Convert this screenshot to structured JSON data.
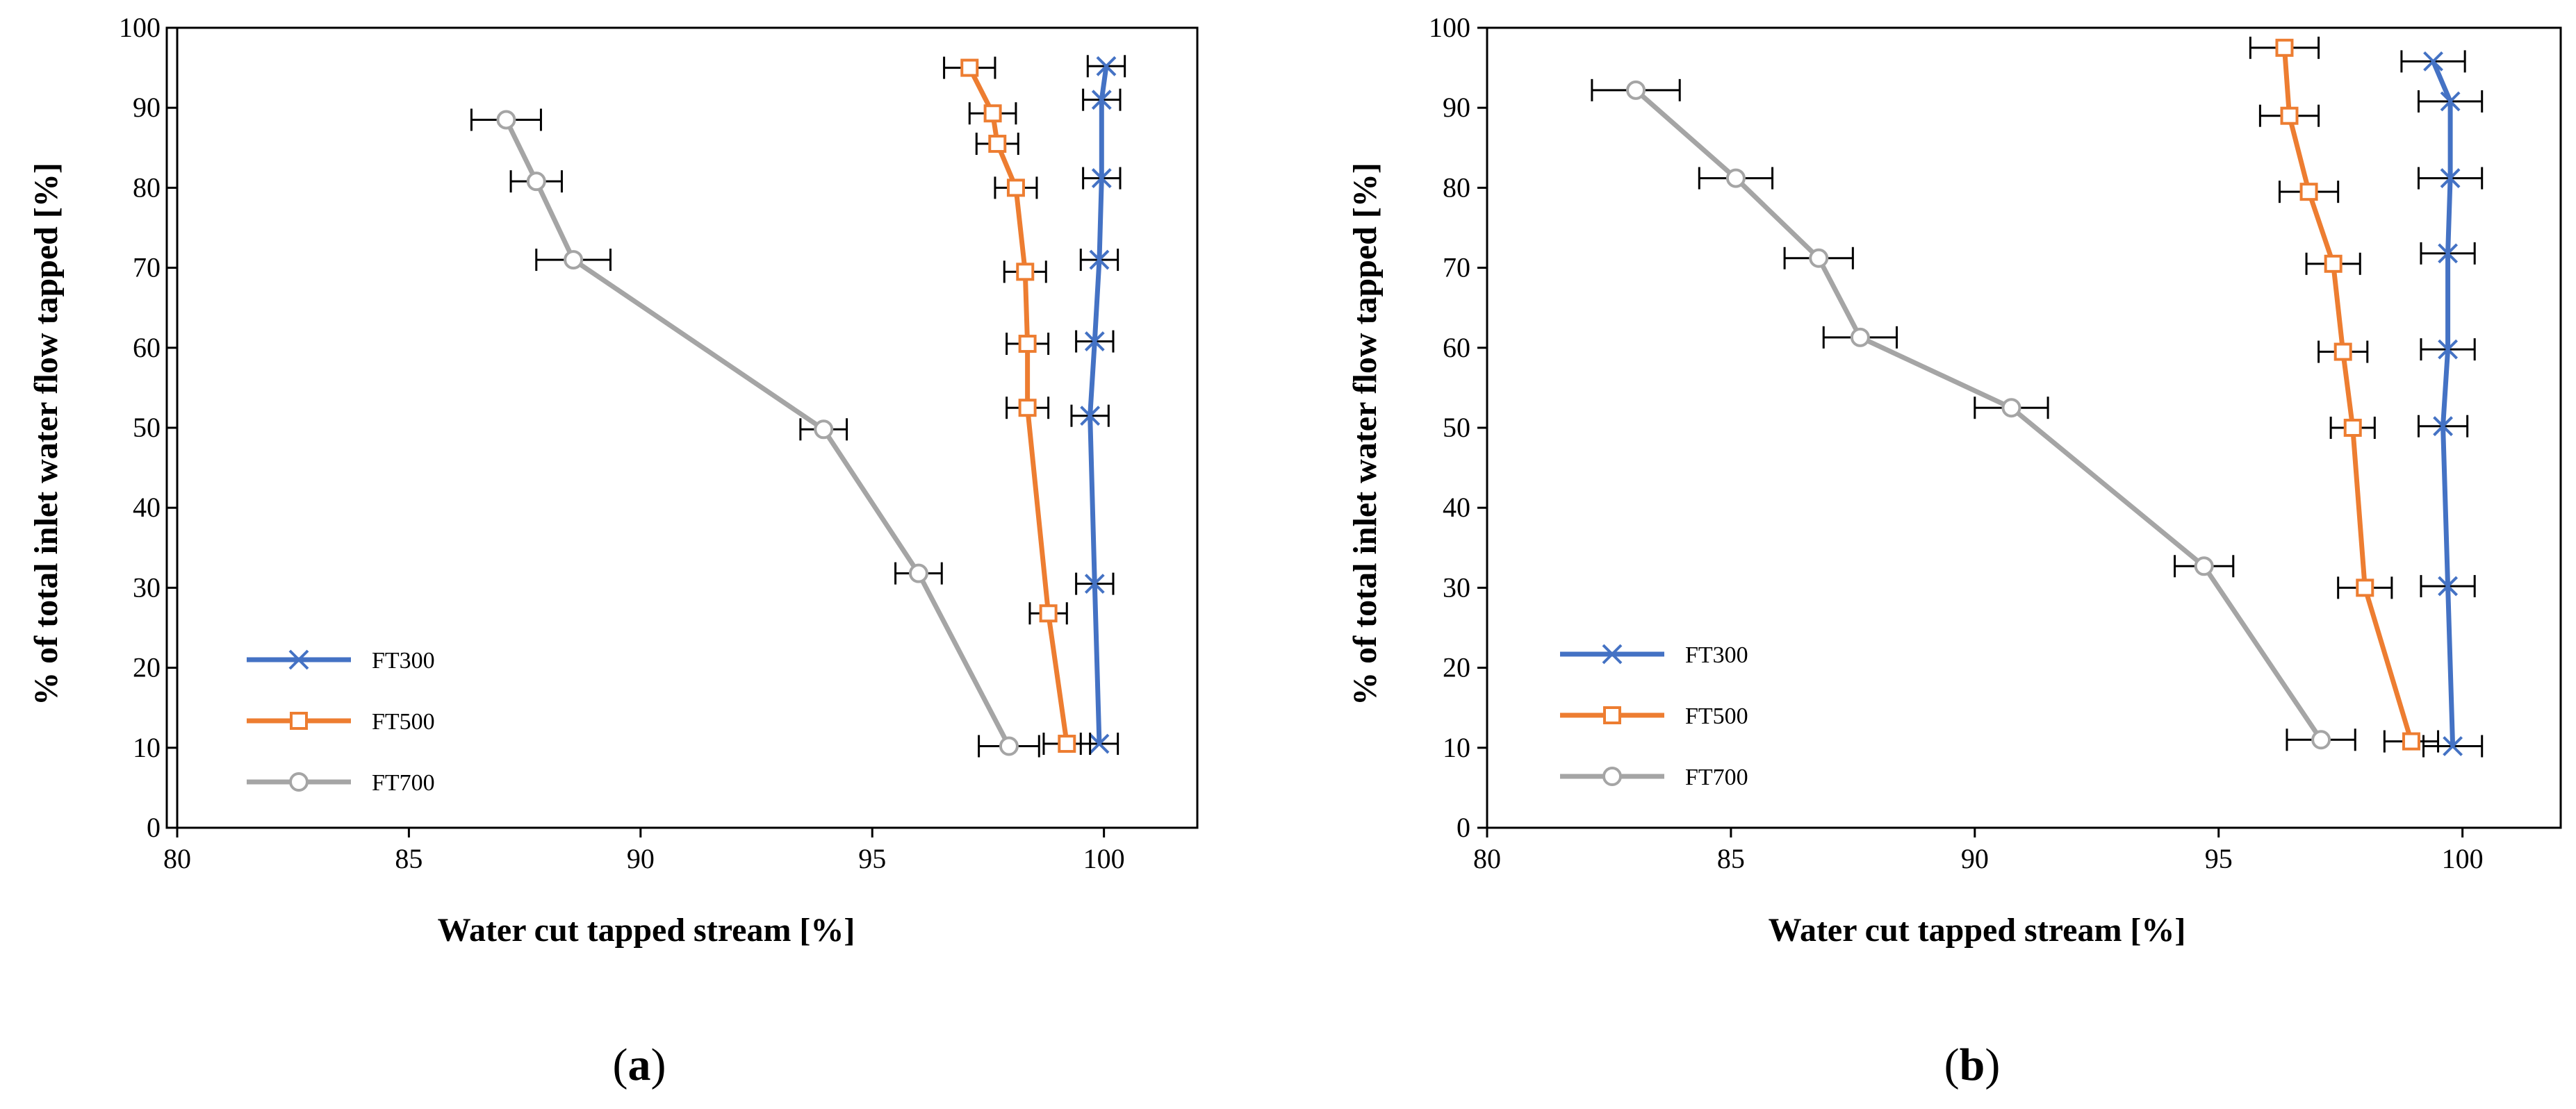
{
  "colors": {
    "FT300": "#4472C4",
    "FT500": "#ED7D31",
    "FT700": "#A5A5A5",
    "errorbar": "#000000",
    "axis": "#000000",
    "frame": "#000000"
  },
  "chart_data": [
    {
      "type": "scatter",
      "panel_label": "(a)",
      "panel_letter": "a",
      "xlabel": "Water cut tapped stream [%]",
      "ylabel": "% of total inlet water flow tapped [%]",
      "xlim": [
        80,
        102
      ],
      "ylim": [
        0,
        100
      ],
      "xticks": [
        80,
        85,
        90,
        95,
        100
      ],
      "yticks": [
        0,
        10,
        20,
        30,
        40,
        50,
        60,
        70,
        80,
        90,
        100
      ],
      "legend_position": "lower-left",
      "series": [
        {
          "name": "FT300",
          "marker": "x",
          "points": [
            {
              "x": 100.05,
              "y": 95.2,
              "err": 0.4
            },
            {
              "x": 99.95,
              "y": 91.0,
              "err": 0.4
            },
            {
              "x": 99.95,
              "y": 81.2,
              "err": 0.4
            },
            {
              "x": 99.9,
              "y": 71.0,
              "err": 0.4
            },
            {
              "x": 99.8,
              "y": 60.8,
              "err": 0.4
            },
            {
              "x": 99.7,
              "y": 51.5,
              "err": 0.4
            },
            {
              "x": 99.8,
              "y": 30.5,
              "err": 0.4
            },
            {
              "x": 99.9,
              "y": 10.5,
              "err": 0.4
            }
          ]
        },
        {
          "name": "FT500",
          "marker": "square",
          "points": [
            {
              "x": 97.1,
              "y": 95.0,
              "err": 0.55
            },
            {
              "x": 97.6,
              "y": 89.3,
              "err": 0.5
            },
            {
              "x": 97.7,
              "y": 85.5,
              "err": 0.45
            },
            {
              "x": 98.1,
              "y": 80.0,
              "err": 0.45
            },
            {
              "x": 98.3,
              "y": 69.5,
              "err": 0.45
            },
            {
              "x": 98.35,
              "y": 60.5,
              "err": 0.45
            },
            {
              "x": 98.35,
              "y": 52.5,
              "err": 0.45
            },
            {
              "x": 98.8,
              "y": 26.8,
              "err": 0.4
            },
            {
              "x": 99.2,
              "y": 10.5,
              "err": 0.5
            }
          ]
        },
        {
          "name": "FT700",
          "marker": "circle",
          "points": [
            {
              "x": 87.1,
              "y": 88.5,
              "err": 0.75
            },
            {
              "x": 87.75,
              "y": 80.8,
              "err": 0.55
            },
            {
              "x": 88.55,
              "y": 71.0,
              "err": 0.8
            },
            {
              "x": 93.95,
              "y": 49.8,
              "err": 0.5
            },
            {
              "x": 96.0,
              "y": 31.8,
              "err": 0.5
            },
            {
              "x": 97.95,
              "y": 10.2,
              "err": 0.65
            }
          ]
        }
      ]
    },
    {
      "type": "scatter",
      "panel_label": "(b)",
      "panel_letter": "b",
      "xlabel": "Water cut tapped stream [%]",
      "ylabel": "% of total inlet water flow tapped [%]",
      "xlim": [
        80,
        102
      ],
      "ylim": [
        0,
        100
      ],
      "xticks": [
        80,
        85,
        90,
        95,
        100
      ],
      "yticks": [
        0,
        10,
        20,
        30,
        40,
        50,
        60,
        70,
        80,
        90,
        100
      ],
      "legend_position": "lower-left",
      "series": [
        {
          "name": "FT300",
          "marker": "x",
          "points": [
            {
              "x": 99.4,
              "y": 95.8,
              "err": 0.65
            },
            {
              "x": 99.75,
              "y": 90.8,
              "err": 0.65
            },
            {
              "x": 99.75,
              "y": 81.2,
              "err": 0.65
            },
            {
              "x": 99.7,
              "y": 71.8,
              "err": 0.55
            },
            {
              "x": 99.7,
              "y": 59.8,
              "err": 0.55
            },
            {
              "x": 99.6,
              "y": 50.2,
              "err": 0.5
            },
            {
              "x": 99.7,
              "y": 30.2,
              "err": 0.55
            },
            {
              "x": 99.8,
              "y": 10.2,
              "err": 0.6
            }
          ]
        },
        {
          "name": "FT500",
          "marker": "square",
          "points": [
            {
              "x": 96.35,
              "y": 97.5,
              "err": 0.7
            },
            {
              "x": 96.45,
              "y": 89.0,
              "err": 0.6
            },
            {
              "x": 96.85,
              "y": 79.5,
              "err": 0.6
            },
            {
              "x": 97.35,
              "y": 70.5,
              "err": 0.55
            },
            {
              "x": 97.55,
              "y": 59.5,
              "err": 0.5
            },
            {
              "x": 97.75,
              "y": 50.0,
              "err": 0.45
            },
            {
              "x": 98.0,
              "y": 30.0,
              "err": 0.55
            },
            {
              "x": 98.95,
              "y": 10.8,
              "err": 0.55
            }
          ]
        },
        {
          "name": "FT700",
          "marker": "circle",
          "points": [
            {
              "x": 83.05,
              "y": 92.2,
              "err": 0.9
            },
            {
              "x": 85.1,
              "y": 81.2,
              "err": 0.75
            },
            {
              "x": 86.8,
              "y": 71.2,
              "err": 0.7
            },
            {
              "x": 87.65,
              "y": 61.3,
              "err": 0.75
            },
            {
              "x": 90.75,
              "y": 52.5,
              "err": 0.75
            },
            {
              "x": 94.7,
              "y": 32.7,
              "err": 0.6
            },
            {
              "x": 97.1,
              "y": 11.0,
              "err": 0.7
            }
          ]
        }
      ]
    }
  ]
}
